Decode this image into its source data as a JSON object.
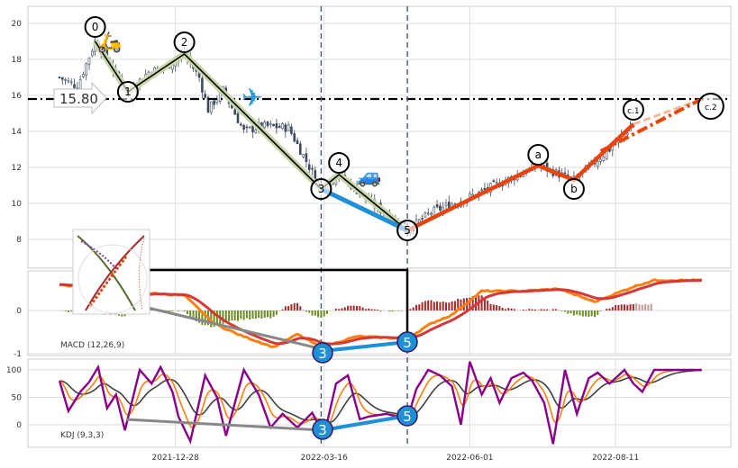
{
  "chart_data": [
    {
      "type": "candlestick",
      "title": "",
      "ylim": [
        6.8,
        21
      ],
      "yticks": [
        "8",
        "10",
        "12",
        "14",
        "16",
        "18",
        "20"
      ],
      "xticks": [
        "2021-12-28",
        "2022-03-16",
        "2022-06-01",
        "2022-08-11"
      ],
      "xtick_index": [
        39,
        89,
        138,
        187
      ],
      "n_bars": 194,
      "close_anchors": [
        [
          0,
          17
        ],
        [
          6,
          16.5
        ],
        [
          12,
          19
        ],
        [
          23,
          16.2
        ],
        [
          30,
          17.3
        ],
        [
          36,
          17.6
        ],
        [
          42,
          18.3
        ],
        [
          47,
          17
        ],
        [
          50,
          15.2
        ],
        [
          55,
          16.3
        ],
        [
          62,
          14
        ],
        [
          68,
          14.3
        ],
        [
          77,
          14.2
        ],
        [
          88,
          10.8
        ],
        [
          94,
          11.6
        ],
        [
          105,
          10
        ],
        [
          117,
          8.5
        ],
        [
          125,
          9.5
        ],
        [
          140,
          10.5
        ],
        [
          161,
          12.1
        ],
        [
          173,
          11.3
        ],
        [
          185,
          13
        ],
        [
          193,
          14.4
        ]
      ],
      "hline": {
        "value": 15.8,
        "label": "15.80"
      },
      "vlines_index": [
        88,
        117
      ],
      "wave_points": [
        {
          "label": "0",
          "i": 12,
          "v": 19.0
        },
        {
          "label": "1",
          "i": 23,
          "v": 16.2
        },
        {
          "label": "2",
          "i": 42,
          "v": 18.3
        },
        {
          "label": "3",
          "i": 88,
          "v": 10.8
        },
        {
          "label": "4",
          "i": 94,
          "v": 11.6
        },
        {
          "label": "5",
          "i": 117,
          "v": 8.5
        },
        {
          "label": "a",
          "i": 161,
          "v": 12.1
        },
        {
          "label": "b",
          "i": 173,
          "v": 11.3
        },
        {
          "label": "c.1",
          "i": 193,
          "v": 14.4
        },
        {
          "label": "c.2",
          "i": 216,
          "v": 15.8
        }
      ],
      "colors": {
        "candle": "#3d4a60",
        "impulse": "#000000",
        "impulse_glow": "#c9d6a8",
        "correction": "#e8450e",
        "blue": "#1f8fd6",
        "hline": "#000000"
      }
    },
    {
      "type": "line",
      "label": "MACD (12,26,9)",
      "ylim": [
        -1.15,
        1.0
      ],
      "yticks": [
        "0",
        "-1"
      ],
      "dif_anchors": [
        [
          0,
          0.6
        ],
        [
          12,
          0.5
        ],
        [
          22,
          0.3
        ],
        [
          30,
          0.4
        ],
        [
          42,
          0.35
        ],
        [
          52,
          -0.3
        ],
        [
          60,
          -0.55
        ],
        [
          66,
          -0.7
        ],
        [
          72,
          -0.85
        ],
        [
          80,
          -0.55
        ],
        [
          88,
          -0.85
        ],
        [
          100,
          -0.6
        ],
        [
          117,
          -0.65
        ],
        [
          125,
          -0.3
        ],
        [
          132,
          -0.1
        ],
        [
          142,
          0.45
        ],
        [
          155,
          0.45
        ],
        [
          168,
          0.5
        ],
        [
          180,
          0.2
        ],
        [
          193,
          0.55
        ],
        [
          200,
          0.7
        ],
        [
          216,
          0.7
        ]
      ],
      "divergence_labels": [
        "3",
        "5"
      ],
      "colors": {
        "dif": "#ff7f0e",
        "dea": "#d43838",
        "hist_pos": "#a52a2a",
        "hist_neg": "#6b8e23",
        "blue": "#1f8fd6",
        "gray": "#888888"
      }
    },
    {
      "type": "line",
      "label": "KDJ (9,3,3)",
      "ylim": [
        -45,
        120
      ],
      "yticks": [
        "100",
        "50",
        "0"
      ],
      "j_anchors": [
        [
          0,
          80
        ],
        [
          3,
          25
        ],
        [
          7,
          60
        ],
        [
          10,
          78
        ],
        [
          13,
          105
        ],
        [
          16,
          30
        ],
        [
          19,
          55
        ],
        [
          22,
          -10
        ],
        [
          27,
          100
        ],
        [
          31,
          75
        ],
        [
          34,
          105
        ],
        [
          38,
          60
        ],
        [
          40,
          15
        ],
        [
          44,
          -30
        ],
        [
          49,
          90
        ],
        [
          53,
          50
        ],
        [
          56,
          -20
        ],
        [
          62,
          100
        ],
        [
          67,
          55
        ],
        [
          71,
          -5
        ],
        [
          75,
          20
        ],
        [
          80,
          -5
        ],
        [
          85,
          22
        ],
        [
          89,
          -20
        ],
        [
          93,
          75
        ],
        [
          97,
          90
        ],
        [
          101,
          10
        ],
        [
          104,
          15
        ],
        [
          110,
          20
        ],
        [
          117,
          10
        ],
        [
          120,
          65
        ],
        [
          124,
          100
        ],
        [
          128,
          90
        ],
        [
          132,
          70
        ],
        [
          135,
          0
        ],
        [
          138,
          115
        ],
        [
          142,
          55
        ],
        [
          145,
          85
        ],
        [
          148,
          40
        ],
        [
          152,
          85
        ],
        [
          156,
          95
        ],
        [
          159,
          80
        ],
        [
          163,
          40
        ],
        [
          166,
          -35
        ],
        [
          170,
          100
        ],
        [
          174,
          20
        ],
        [
          178,
          85
        ],
        [
          181,
          95
        ],
        [
          185,
          75
        ],
        [
          190,
          100
        ],
        [
          193,
          75
        ],
        [
          196,
          60
        ],
        [
          200,
          100
        ],
        [
          216,
          100
        ]
      ],
      "divergence_labels": [
        "3",
        "5"
      ],
      "colors": {
        "j": "#8b008b",
        "k": "#ff7f0e",
        "d": "#404040",
        "blue": "#1f8fd6",
        "gray": "#888888"
      }
    }
  ]
}
